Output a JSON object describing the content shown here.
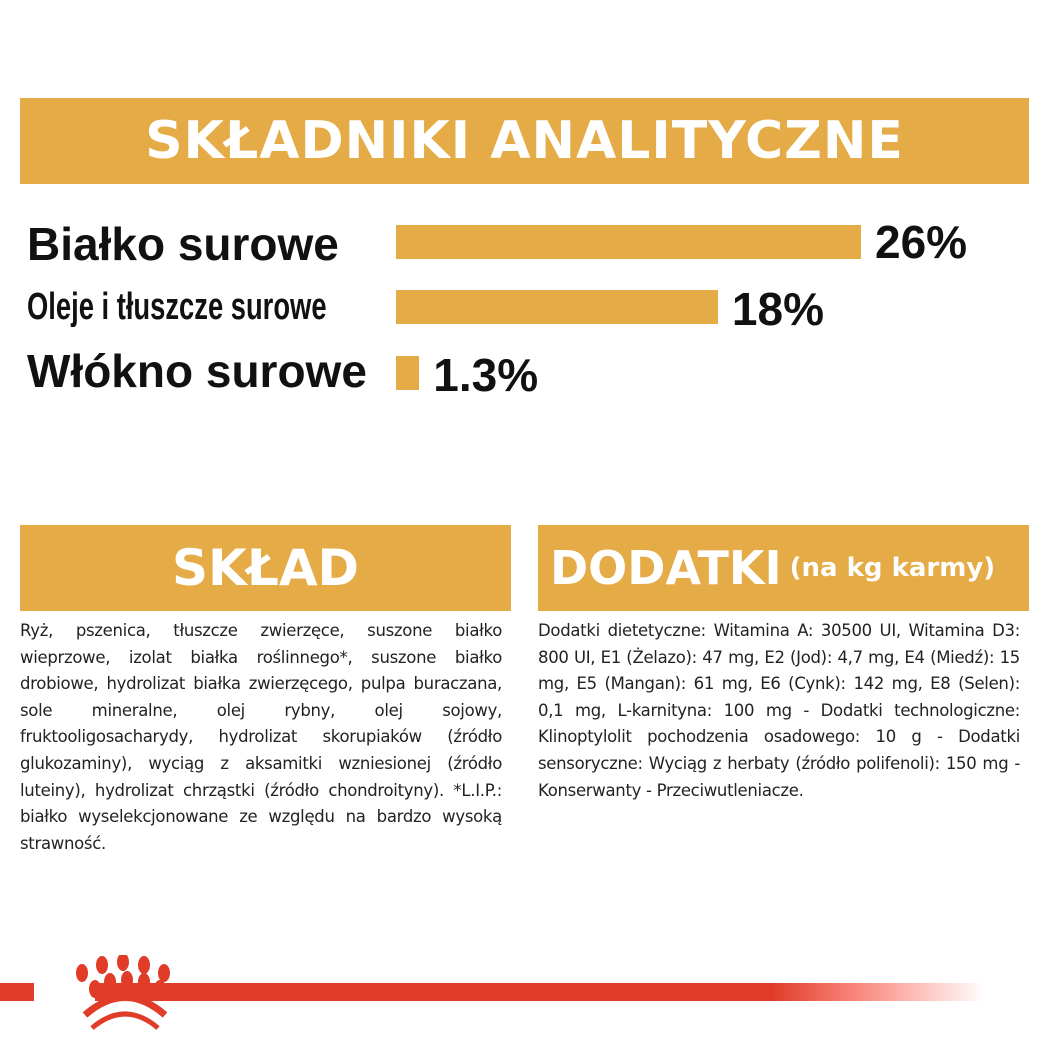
{
  "header": {
    "title": "SKŁADNIKI ANALITYCZNE"
  },
  "analysis": [
    {
      "label": "Białko surowe",
      "value": 26,
      "display": "26%"
    },
    {
      "label": "Oleje i tłuszcze surowe",
      "value": 18,
      "display": "18%"
    },
    {
      "label": "Włókno surowe",
      "value": 1.3,
      "display": "1.3%"
    }
  ],
  "composition": {
    "title": "SKŁAD",
    "text": "Ryż, pszenica, tłuszcze zwierzęce, suszone białko wieprzowe, izolat białka roślinnego*, suszone białko drobiowe, hydrolizat białka zwierzęcego, pulpa buraczana, sole mineralne, olej rybny, olej sojowy, fruktooligosacharydy, hydrolizat skorupiaków (źródło glukozaminy), wyciąg z aksamitki wzniesionej (źródło luteiny), hydrolizat chrząstki (źródło chondroityny). *L.I.P.: białko wyselekcjonowane ze względu na bardzo wysoką strawność."
  },
  "additives": {
    "title": "DODATKI",
    "subtitle": "(na kg karmy)",
    "text": "Dodatki dietetyczne: Witamina A: 30500 UI, Witamina D3: 800 UI, E1 (Żelazo): 47 mg, E2 (Jod): 4,7 mg, E4 (Miedź): 15 mg, E5 (Mangan): 61 mg, E6 (Cynk): 142 mg, E8 (Selen): 0,1 mg, L-karnityna: 100 mg - Dodatki technologiczne: Klinoptylolit pochodzenia osadowego: 10 g - Dodatki sensoryczne: Wyciąg z herbaty (źródło polifenoli): 150 mg - Konserwanty - Przeciwutleniacze."
  },
  "colors": {
    "accent": "#E5AB46",
    "brand_red": "#E03C28"
  },
  "logo": {
    "icon": "royal-canin-crown-logo"
  }
}
